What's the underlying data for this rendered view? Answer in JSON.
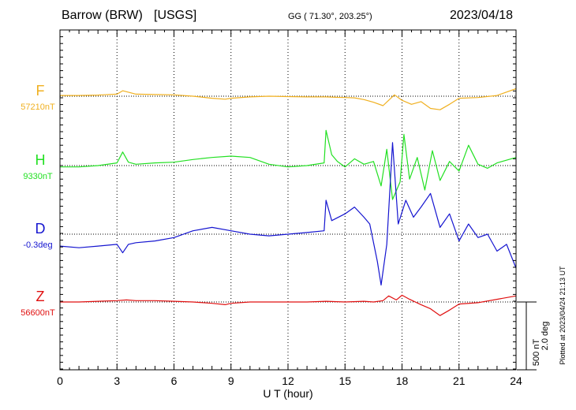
{
  "header": {
    "station": "Barrow (BRW)",
    "source": "[USGS]",
    "coords": "GG ( 71.30°, 203.25°)",
    "date": "2023/04/18"
  },
  "plotted_note": "Plotted at 2023/04/24 21:13 UT",
  "colors": {
    "F": "#f0b020",
    "H": "#22e022",
    "D": "#1515d0",
    "Z": "#e01010"
  },
  "chart_data": {
    "type": "line",
    "xlabel": "U T (hour)",
    "xlim": [
      0,
      24
    ],
    "xticks": [
      "0",
      "3",
      "6",
      "9",
      "12",
      "15",
      "18",
      "21",
      "24"
    ],
    "scale_bar": {
      "nT_label": "500 nT",
      "deg_label": "2.0 deg"
    },
    "series": [
      {
        "name": "F",
        "baseline_label": "57210nT",
        "unit": "nT",
        "x": [
          0,
          1,
          2,
          3,
          3.3,
          4,
          5,
          6,
          7,
          8,
          8.7,
          9,
          10,
          11,
          12,
          13,
          14,
          14.5,
          15,
          15.5,
          16,
          16.5,
          17,
          17.3,
          17.6,
          18,
          18.5,
          19,
          19.5,
          20,
          20.5,
          21,
          22,
          23,
          24
        ],
        "values": [
          5,
          5,
          8,
          15,
          40,
          15,
          12,
          10,
          0,
          -15,
          -22,
          -15,
          -5,
          0,
          -3,
          -5,
          -5,
          -8,
          -10,
          -12,
          -25,
          -45,
          -70,
          -30,
          10,
          -30,
          -60,
          -40,
          -90,
          -100,
          -60,
          -15,
          -10,
          5,
          55
        ]
      },
      {
        "name": "H",
        "baseline_label": "9330nT",
        "unit": "nT",
        "x": [
          0,
          1,
          2,
          3,
          3.3,
          3.6,
          4,
          5,
          6,
          7,
          8,
          9,
          10,
          11,
          12,
          13,
          13.9,
          14.0,
          14.3,
          14.6,
          15,
          15.5,
          16,
          16.5,
          16.9,
          17.2,
          17.5,
          17.9,
          18.1,
          18.4,
          18.8,
          19.2,
          19.6,
          20,
          20.5,
          21,
          21.5,
          22,
          22.5,
          23,
          24
        ],
        "values": [
          -10,
          -10,
          0,
          20,
          100,
          25,
          10,
          20,
          25,
          45,
          60,
          70,
          60,
          10,
          -10,
          0,
          20,
          260,
          80,
          30,
          -10,
          50,
          10,
          30,
          -150,
          120,
          -250,
          -120,
          230,
          -100,
          60,
          -180,
          110,
          -110,
          30,
          -40,
          150,
          10,
          -20,
          20,
          60
        ]
      },
      {
        "name": "D",
        "baseline_label": "-0.3deg",
        "unit": "deg",
        "x": [
          0,
          1,
          2,
          3,
          3.3,
          3.6,
          4,
          5,
          6,
          7,
          8,
          9,
          10,
          11,
          12,
          13,
          13.9,
          14.0,
          14.3,
          15,
          15.5,
          16,
          16.3,
          16.7,
          16.9,
          17.2,
          17.5,
          17.8,
          18.2,
          18.6,
          19,
          19.5,
          20,
          20.5,
          21,
          21.5,
          22,
          22.5,
          23,
          23.5,
          24
        ],
        "values": [
          -0.35,
          -0.4,
          -0.35,
          -0.3,
          -0.55,
          -0.3,
          -0.25,
          -0.2,
          -0.1,
          0.1,
          0.2,
          0.1,
          0.0,
          -0.05,
          0.0,
          0.05,
          0.1,
          1.0,
          0.4,
          0.6,
          0.8,
          0.5,
          0.3,
          -0.8,
          -1.5,
          -0.3,
          2.7,
          0.3,
          1.0,
          0.5,
          0.8,
          1.2,
          0.2,
          0.6,
          -0.2,
          0.3,
          -0.1,
          0.0,
          -0.5,
          -0.3,
          -1.0
        ]
      },
      {
        "name": "Z",
        "baseline_label": "56600nT",
        "unit": "nT",
        "x": [
          0,
          1,
          2,
          3,
          3.5,
          4,
          5,
          6,
          7,
          8,
          8.7,
          9,
          10,
          11,
          12,
          13,
          14,
          15,
          16,
          16.5,
          17,
          17.3,
          17.7,
          18,
          18.4,
          19,
          19.5,
          20,
          20.5,
          21,
          22,
          23,
          24
        ],
        "values": [
          0,
          0,
          5,
          10,
          15,
          10,
          10,
          5,
          0,
          -10,
          -20,
          -10,
          0,
          0,
          0,
          0,
          5,
          0,
          5,
          0,
          10,
          45,
          15,
          50,
          20,
          -20,
          -50,
          -100,
          -60,
          -15,
          -5,
          20,
          45
        ]
      }
    ]
  }
}
